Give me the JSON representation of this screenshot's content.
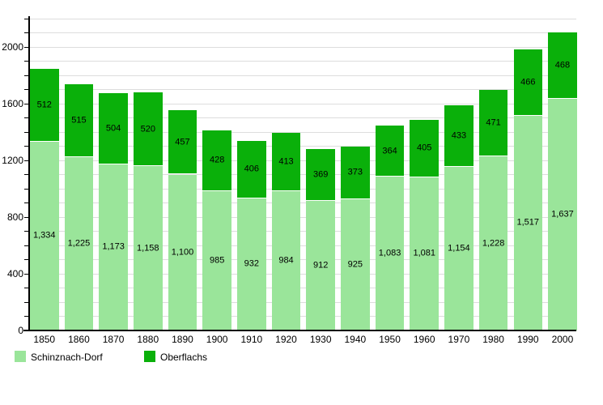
{
  "chart_data": {
    "type": "bar",
    "stacked": true,
    "title": "",
    "xlabel": "",
    "ylabel": "",
    "categories": [
      "1850",
      "1860",
      "1870",
      "1880",
      "1890",
      "1900",
      "1910",
      "1920",
      "1930",
      "1940",
      "1950",
      "1960",
      "1970",
      "1980",
      "1990",
      "2000"
    ],
    "series": [
      {
        "name": "Schinznach-Dorf",
        "color": "#9ae59a",
        "values": [
          1334,
          1225,
          1173,
          1158,
          1100,
          985,
          932,
          984,
          912,
          925,
          1083,
          1081,
          1154,
          1228,
          1517,
          1637
        ]
      },
      {
        "name": "Oberflachs",
        "color": "#0ab00a",
        "values": [
          512,
          515,
          504,
          520,
          457,
          428,
          406,
          413,
          369,
          373,
          364,
          405,
          433,
          471,
          466,
          468
        ]
      }
    ],
    "ylim": [
      0,
      2200
    ],
    "y_label_step": 400,
    "y_minor_step": 100,
    "y_tick_labels": [
      "0",
      "400",
      "800",
      "1200",
      "1600",
      "2000"
    ],
    "grid": true,
    "gridline_color": "#dddddd",
    "axis_color": "#000000",
    "background": "#ffffff",
    "value_labels": "inside-segments",
    "number_format": "thousands-comma",
    "legend_position": "bottom-left"
  }
}
